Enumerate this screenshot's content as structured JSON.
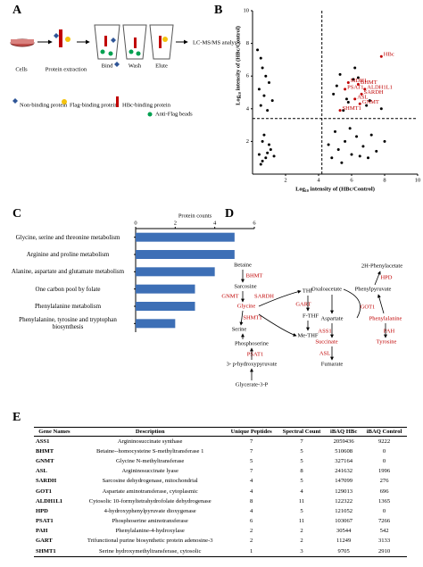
{
  "panel_labels": [
    "A",
    "B",
    "C",
    "D",
    "E"
  ],
  "panel_a": {
    "steps": [
      "Cells",
      "Protein extraction",
      "Bind",
      "Wash",
      "Elute",
      "LC-MS/MS analysis"
    ],
    "legend": [
      "Non-binding protein",
      "Flag-binding protein",
      "HBc-binding protein",
      "Anti-Flag beads"
    ]
  },
  "chart_data": [
    {
      "type": "scatter",
      "xlabel": "Log₁₀ intensity of (HBc/Control)",
      "ylabel": "Log₁₀ intensity of (HBc/Control)",
      "xlim": [
        0,
        10
      ],
      "ylim": [
        0,
        10
      ],
      "xticks": [
        2,
        4,
        6,
        8,
        10
      ],
      "yticks": [
        2,
        4,
        6,
        8,
        10
      ],
      "ref_x": 4.2,
      "ref_y": 3.4,
      "series": [
        {
          "color": "#000000",
          "x": [
            0.3,
            0.5,
            0.6,
            0.8,
            1.0,
            0.4,
            0.7,
            1.2,
            0.5,
            0.9,
            0.6,
            1.1,
            0.4,
            0.8,
            0.6,
            1.0,
            0.7,
            0.9,
            1.3,
            0.5,
            4.8,
            5.2,
            5.6,
            6.0,
            6.3,
            6.7,
            7.0,
            7.5,
            8.0,
            5.0,
            5.4,
            5.9,
            6.5,
            7.2,
            4.6,
            5.1,
            5.7,
            6.1,
            6.9,
            7.8,
            4.9,
            5.3,
            5.8,
            6.2,
            5.5,
            6.4,
            7.1
          ],
          "y": [
            7.6,
            7.1,
            6.5,
            6.0,
            5.6,
            5.2,
            4.8,
            4.5,
            4.2,
            3.9,
            2.0,
            1.5,
            1.2,
            1.0,
            0.8,
            1.8,
            2.4,
            1.3,
            1.1,
            0.6,
            1.0,
            1.5,
            2.0,
            1.2,
            2.3,
            1.7,
            1.0,
            1.4,
            2.0,
            2.6,
            0.7,
            2.8,
            1.1,
            2.4,
            1.8,
            5.4,
            4.6,
            5.8,
            4.2,
            4.0,
            4.9,
            6.1,
            4.4,
            6.5,
            3.9,
            5.9,
            4.5
          ]
        },
        {
          "color": "#c00000",
          "x": [
            7.8,
            5.8,
            6.4,
            5.6,
            6.8,
            6.6,
            6.2,
            6.5,
            5.3
          ],
          "y": [
            7.2,
            5.6,
            5.5,
            5.2,
            5.2,
            4.9,
            4.6,
            4.3,
            3.9
          ],
          "point_labels": [
            "HBc",
            "MDH1",
            "BHMT",
            "PSAT1",
            "ALDH1L1",
            "SARDH",
            "ASL",
            "GNMT",
            "SHMT1"
          ]
        }
      ]
    },
    {
      "type": "bar",
      "orientation": "horizontal",
      "title": "Protein counts",
      "categories": [
        "Glycine, serine and threonine metabolism",
        "Arginine and proline metabolism",
        "Alanine, aspartate and glutamate metabolism",
        "One carbon pool by folate",
        "Phenylalanine metabolism",
        "Phenylalanine, tyrosine and tryptophan biosynthesis"
      ],
      "values": [
        5,
        5,
        4,
        3,
        3,
        2
      ],
      "color": "#3d6fb6",
      "xlim": [
        0,
        6
      ],
      "xticks": [
        0,
        2,
        4,
        6
      ]
    }
  ],
  "panel_d": {
    "nodes": [
      "Betaine",
      "BHMT",
      "Sarcosine",
      "GNMT",
      "SARDH",
      "Glycine",
      "SHMT1",
      "Serine",
      "Phosphoserine",
      "PSAT1",
      "3- p-hydroxypyruvate",
      "Glycerate-3-P",
      "THF",
      "GART",
      "F-THF",
      "Me-THF",
      "2H-Phenylacetate",
      "HPD",
      "Oxaloacetate",
      "Phenylpyruvate",
      "GOT1",
      "Aspartate",
      "Phenylalanine",
      "ASS1",
      "PAH",
      "Succinate",
      "Tyrosine",
      "ASL",
      "Fumarate"
    ]
  },
  "table": {
    "header": [
      "Gene Names",
      "Description",
      "Unique Peptides",
      "Spectral Count",
      "iBAQ HBc",
      "iBAQ Control"
    ],
    "rows": [
      [
        "ASS1",
        "Argininosuccinate synthase",
        7,
        7,
        2059436,
        9222
      ],
      [
        "BHMT",
        "Betaine--homocysteine S-methyltransferase 1",
        7,
        5,
        510608,
        0
      ],
      [
        "GNMT",
        "Glycine N-methyltransferase",
        5,
        5,
        327164,
        0
      ],
      [
        "ASL",
        "Argininosuccinate lyase",
        7,
        8,
        241632,
        1996
      ],
      [
        "SARDH",
        "Sarcosine dehydrogenase, mitochondrial",
        4,
        5,
        147099,
        276
      ],
      [
        "GOT1",
        "Aspartate aminotransferase, cytoplasmic",
        4,
        4,
        129013,
        696
      ],
      [
        "ALDH1L1",
        "Cytosolic 10-formyltetrahydrofolate dehydrogenase",
        8,
        11,
        122322,
        1365
      ],
      [
        "HPD",
        "4-hydroxyphenylpyruvate dioxygenase",
        4,
        5,
        121052,
        0
      ],
      [
        "PSAT1",
        "Phosphoserine aminotransferase",
        6,
        11,
        103067,
        7266
      ],
      [
        "PAH",
        "Phenylalanine-4-hydroxylase",
        2,
        2,
        30544,
        542
      ],
      [
        "GART",
        "Trifunctional purine biosynthetic protein adenosine-3",
        2,
        2,
        11249,
        3133
      ],
      [
        "SHMT1",
        "Serine hydroxymethyltransferase, cytosolic",
        1,
        3,
        9705,
        2910
      ]
    ]
  }
}
